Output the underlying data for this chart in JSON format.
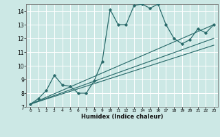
{
  "xlabel": "Humidex (Indice chaleur)",
  "ylabel": "",
  "xlim": [
    -0.5,
    23.5
  ],
  "ylim": [
    7,
    14.5
  ],
  "yticks": [
    7,
    8,
    9,
    10,
    11,
    12,
    13,
    14
  ],
  "xticks": [
    0,
    1,
    2,
    3,
    4,
    5,
    6,
    7,
    8,
    9,
    10,
    11,
    12,
    13,
    14,
    15,
    16,
    17,
    18,
    19,
    20,
    21,
    22,
    23
  ],
  "background_color": "#cce8e5",
  "grid_color": "#ffffff",
  "line_color": "#2a6b6b",
  "series1_x": [
    0,
    1,
    2,
    3,
    4,
    5,
    6,
    7,
    8,
    9,
    10,
    11,
    12,
    13,
    14,
    15,
    16,
    17,
    18,
    19,
    20,
    21,
    22,
    23
  ],
  "series1_y": [
    7.2,
    7.6,
    8.2,
    9.3,
    8.6,
    8.5,
    8.0,
    8.0,
    8.9,
    10.3,
    14.1,
    13.0,
    13.0,
    14.4,
    14.5,
    14.2,
    14.5,
    13.0,
    12.0,
    11.6,
    11.9,
    12.7,
    12.4,
    13.0
  ],
  "series2_x": [
    0,
    23
  ],
  "series2_y": [
    7.2,
    13.0
  ],
  "series3_x": [
    0,
    23
  ],
  "series3_y": [
    7.2,
    12.0
  ],
  "series4_x": [
    0,
    23
  ],
  "series4_y": [
    7.2,
    11.5
  ]
}
